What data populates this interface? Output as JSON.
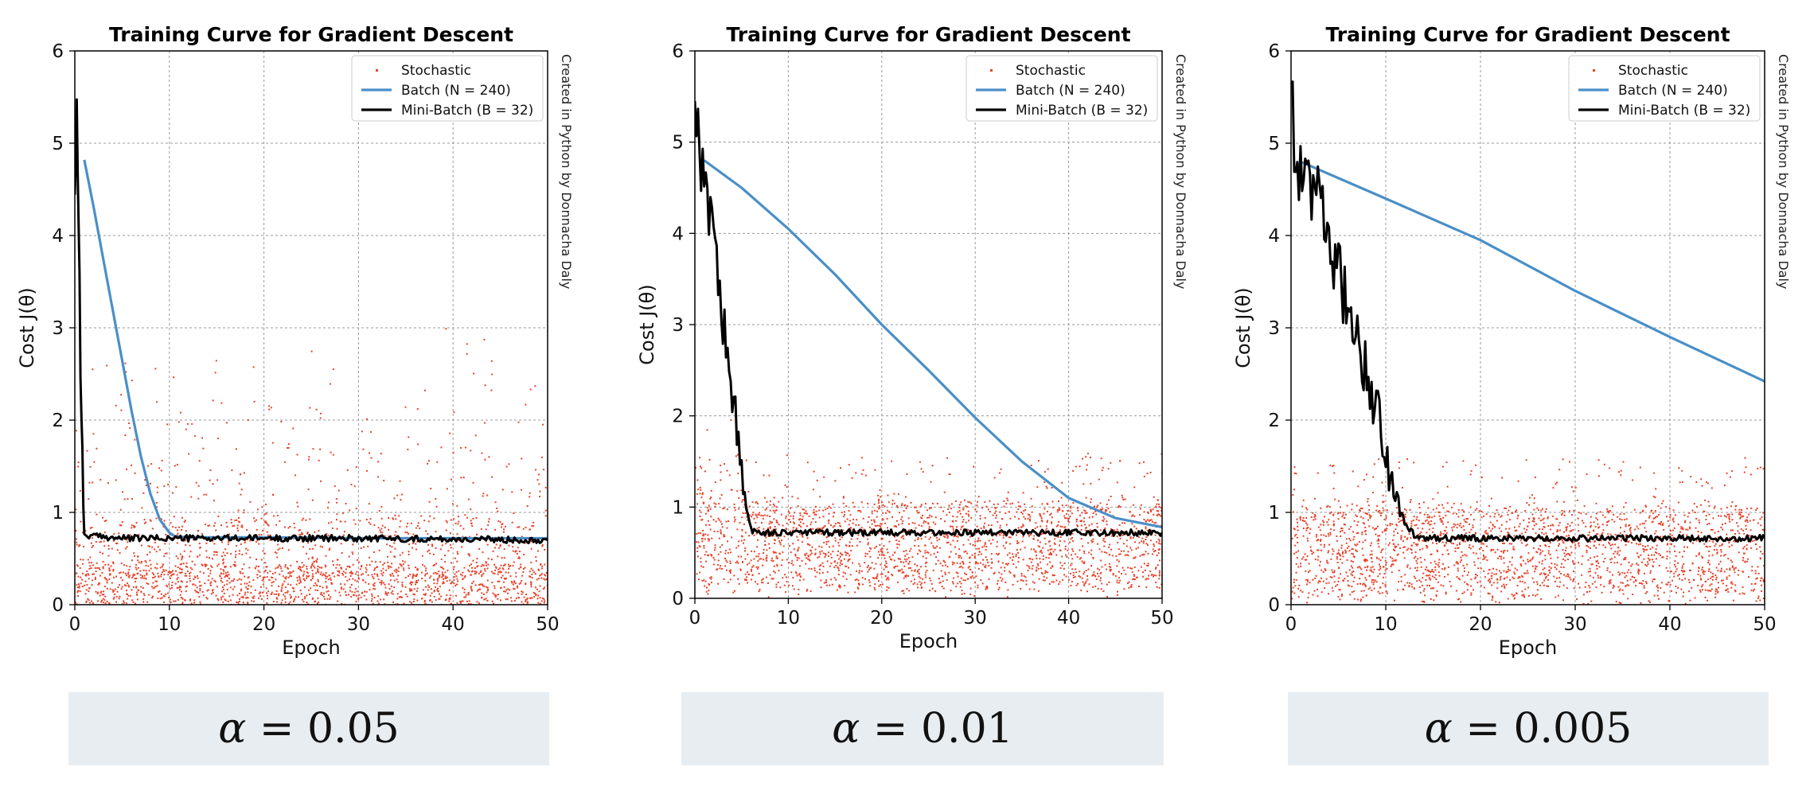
{
  "chart_data": [
    {
      "type": "line",
      "title": "Training Curve for Gradient Descent",
      "xlabel": "Epoch",
      "ylabel": "Cost J(θ)",
      "xlim": [
        0,
        50
      ],
      "ylim": [
        0,
        6
      ],
      "xticks": [
        "0",
        "10",
        "20",
        "30",
        "40",
        "50"
      ],
      "yticks": [
        "0",
        "1",
        "2",
        "3",
        "4",
        "5",
        "6"
      ],
      "grid": true,
      "legend": "top-right",
      "credit": "Created in Python by Donnacha Daly",
      "series": [
        {
          "name": "Stochastic",
          "style": "scatter",
          "color": "#e8432b"
        },
        {
          "name": "Batch (N = 240)",
          "style": "line",
          "color": "#4a8fc7",
          "x": [
            1,
            2,
            3,
            4,
            5,
            6,
            7,
            8,
            9,
            10,
            10.6,
            12,
            20,
            30,
            40,
            50
          ],
          "y": [
            4.82,
            4.3,
            3.75,
            3.2,
            2.65,
            2.1,
            1.6,
            1.2,
            0.92,
            0.78,
            0.74,
            0.73,
            0.73,
            0.72,
            0.72,
            0.72
          ]
        },
        {
          "name": "Mini-Batch (B = 32)",
          "style": "line",
          "color": "#000000",
          "x": [
            0,
            0.2,
            0.4,
            0.6,
            0.8,
            1,
            5,
            10,
            20,
            30,
            40,
            50
          ],
          "y": [
            4.6,
            5.4,
            4.2,
            2.8,
            1.5,
            0.75,
            0.72,
            0.72,
            0.72,
            0.72,
            0.71,
            0.7
          ]
        }
      ]
    },
    {
      "type": "line",
      "title": "Training Curve for Gradient Descent",
      "xlabel": "Epoch",
      "ylabel": "Cost J(θ)",
      "xlim": [
        0,
        50
      ],
      "ylim": [
        0,
        6
      ],
      "xticks": [
        "0",
        "10",
        "20",
        "30",
        "40",
        "50"
      ],
      "yticks": [
        "0",
        "1",
        "2",
        "3",
        "4",
        "5",
        "6"
      ],
      "grid": true,
      "legend": "top-right",
      "credit": "Created in Python by Donnacha Daly",
      "series": [
        {
          "name": "Stochastic",
          "style": "scatter",
          "color": "#e8432b"
        },
        {
          "name": "Batch (N = 240)",
          "style": "line",
          "color": "#4a8fc7",
          "x": [
            1,
            5,
            10,
            15,
            20,
            25,
            30,
            35,
            40,
            45,
            50
          ],
          "y": [
            4.8,
            4.5,
            4.05,
            3.55,
            3.0,
            2.5,
            1.98,
            1.5,
            1.1,
            0.88,
            0.78
          ]
        },
        {
          "name": "Mini-Batch (B = 32)",
          "style": "line",
          "color": "#000000",
          "x": [
            0,
            0.5,
            1,
            1.5,
            2,
            2.5,
            3,
            3.5,
            4,
            4.5,
            5,
            5.5,
            6,
            7,
            10,
            20,
            30,
            40,
            50
          ],
          "y": [
            5.6,
            4.9,
            4.6,
            4.3,
            4.0,
            3.6,
            3.0,
            2.6,
            2.2,
            1.8,
            1.4,
            1.0,
            0.75,
            0.72,
            0.72,
            0.72,
            0.72,
            0.72,
            0.72
          ]
        }
      ]
    },
    {
      "type": "line",
      "title": "Training Curve for Gradient Descent",
      "xlabel": "Epoch",
      "ylabel": "Cost J(θ)",
      "xlim": [
        0,
        50
      ],
      "ylim": [
        0,
        6
      ],
      "xticks": [
        "0",
        "10",
        "20",
        "30",
        "40",
        "50"
      ],
      "yticks": [
        "0",
        "1",
        "2",
        "3",
        "4",
        "5",
        "6"
      ],
      "grid": true,
      "legend": "top-right",
      "credit": "Created in Python by Donnacha Daly",
      "series": [
        {
          "name": "Stochastic",
          "style": "scatter",
          "color": "#e8432b"
        },
        {
          "name": "Batch (N = 240)",
          "style": "line",
          "color": "#4a8fc7",
          "x": [
            1,
            10,
            20,
            30,
            40,
            50
          ],
          "y": [
            4.8,
            4.4,
            3.95,
            3.4,
            2.9,
            2.42
          ]
        },
        {
          "name": "Mini-Batch (B = 32)",
          "style": "line",
          "color": "#000000",
          "x": [
            0,
            0.5,
            1,
            2,
            3,
            4,
            5,
            6,
            7,
            8,
            9,
            10,
            11,
            12,
            13,
            14,
            20,
            30,
            40,
            50
          ],
          "y": [
            5.8,
            4.6,
            4.8,
            4.4,
            4.6,
            3.8,
            3.6,
            3.2,
            3.0,
            2.5,
            2.2,
            1.6,
            1.2,
            0.9,
            0.75,
            0.72,
            0.72,
            0.72,
            0.72,
            0.72
          ]
        }
      ]
    }
  ],
  "alpha_labels": [
    {
      "symbol": "α",
      "text": " = 0.05"
    },
    {
      "symbol": "α",
      "text": " = 0.01"
    },
    {
      "symbol": "α",
      "text": " = 0.005"
    }
  ]
}
